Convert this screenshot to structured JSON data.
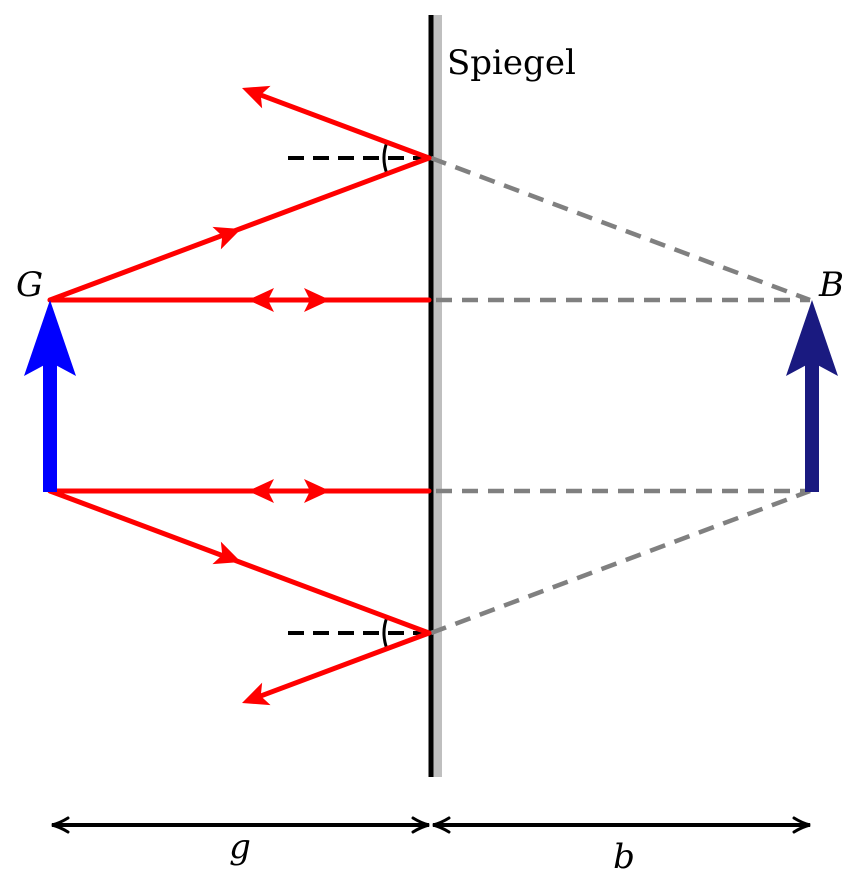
{
  "labels": {
    "mirror": "Spiegel",
    "object": "G",
    "image": "B",
    "object_distance": "g",
    "image_distance": "b"
  },
  "colors": {
    "ray": "#ff0000",
    "object_arrow": "#0000ff",
    "image_arrow": "#1a1a80",
    "virtual_ray": "#808080",
    "mirror_back": "#bfbfbf",
    "mirror_line": "#000000",
    "normal_line": "#000000"
  }
}
